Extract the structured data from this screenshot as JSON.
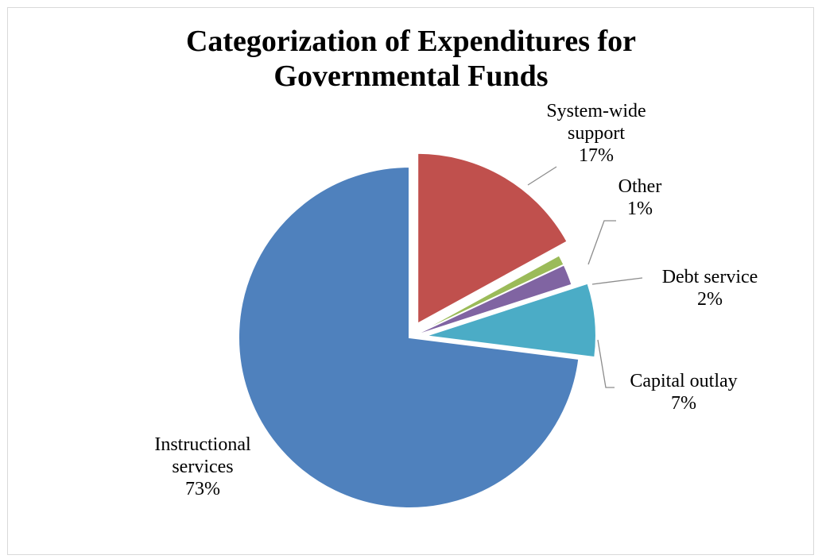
{
  "chart_data": {
    "type": "pie",
    "title_lines": [
      "Categorization of Expenditures  for",
      "Governmental  Funds"
    ],
    "slices": [
      {
        "name_lines": [
          "System-wide",
          "support"
        ],
        "percent_label": "17%",
        "value": 17,
        "color": "#c0504d",
        "exploded": true
      },
      {
        "name_lines": [
          "Other"
        ],
        "percent_label": "1%",
        "value": 1,
        "color": "#9bbb59",
        "exploded": false
      },
      {
        "name_lines": [
          "Debt service"
        ],
        "percent_label": "2%",
        "value": 2,
        "color": "#8064a2",
        "exploded": false
      },
      {
        "name_lines": [
          "Capital outlay"
        ],
        "percent_label": "7%",
        "value": 7,
        "color": "#4bacc6",
        "exploded": true
      },
      {
        "name_lines": [
          "Instructional",
          "services"
        ],
        "percent_label": "73%",
        "value": 73,
        "color": "#4f81bd",
        "exploded": false
      }
    ],
    "legend": "none"
  }
}
